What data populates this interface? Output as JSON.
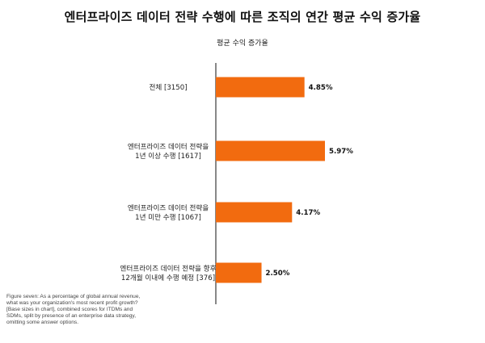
{
  "title": "엔터프라이즈 데이터 전략 수행에 따른 조직의 연간 평균 수익 증가율",
  "subtitle": "평균 수익 증가율",
  "caption": "Figure seven: As a percentage of global annual revenue, what was your organization's most recent profit growth? [Base sizes in chart], combined scores for ITDMs and SDMs, split by presence of an enterprise data strategy, omitting some answer options.",
  "colors": {
    "bar": "#f26b0f",
    "axis": "#111111"
  },
  "chart_data": {
    "type": "bar",
    "orientation": "horizontal",
    "title": "엔터프라이즈 데이터 전략 수행에 따른 조직의 연간 평균 수익 증가율",
    "subtitle": "평균 수익 증가율",
    "categories": [
      [
        "전체 [3150]"
      ],
      [
        "엔터프라이즈 데이터 전략을",
        "1년 이상 수행 [1617]"
      ],
      [
        "엔터프라이즈 데이터 전략을",
        "1년 미만 수행 [1067]"
      ],
      [
        "엔터프라이즈 데이터 전략을 향후",
        "12개월 이내에 수행 예정 [376]"
      ]
    ],
    "values": [
      4.85,
      5.97,
      4.17,
      2.5
    ],
    "value_labels": [
      "4.85%",
      "5.97%",
      "4.17%",
      "2.50%"
    ],
    "xlim": [
      0,
      7
    ],
    "grid": false,
    "legend": "none"
  }
}
